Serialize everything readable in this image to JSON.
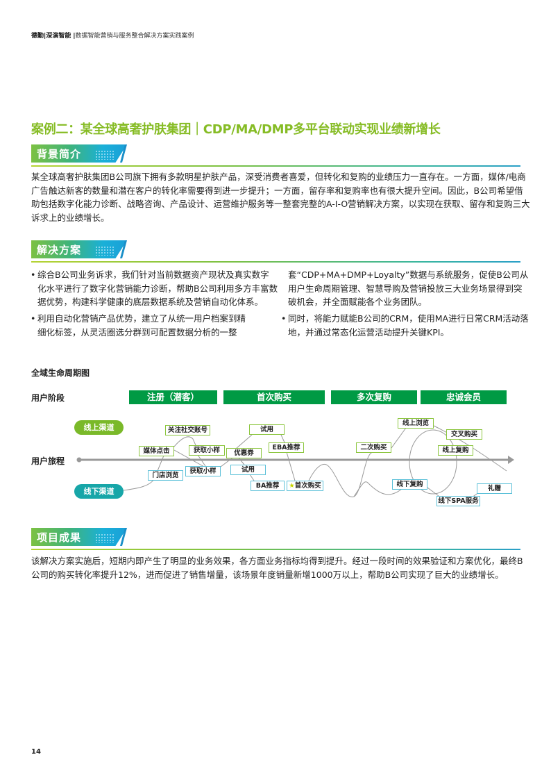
{
  "header": {
    "brand1": "德勤",
    "brand2": "深演智能",
    "subtitle": "数据智能营销与服务整合解决方案实践案例"
  },
  "title": "案例二：某全球高奢护肤集团｜CDP/MA/DMP多平台联动实现业绩新增长",
  "sections": {
    "background": {
      "label": "背景简介",
      "lines": [
        "某全球高奢护肤集团B公司旗下拥有多款明星护肤产品，深受消费者喜爱，但转化和复购的业绩压力一直存在。一方面，媒体/电商",
        "广告触达新客的数量和潜在客户的转化率需要得到进一步提升；一方面，留存率和复购率也有很大提升空间。因此，B公司希望借",
        "助包括数字化能力诊断、战略咨询、产品设计、运营维护服务等一整套完整的A-I-O营销解决方案，以实现在获取、留存和复购三大",
        "诉求上的业绩增长。"
      ]
    },
    "solution": {
      "label": "解决方案",
      "bullets": [
        {
          "lines": [
            "综合B公司业务诉求，我们针对当前数据资产现状及真实数字",
            "化水平进行了数字化营销能力诊断，帮助B公司利用多方丰富数",
            "据优势，构建科学健康的底层数据系统及营销自动化体系。"
          ]
        },
        {
          "lines": [
            "利用自动化营销产品优势，建立了从统一用户档案到精",
            "细化标签，从灵活圈选分群到可配置数据分析的一整"
          ]
        },
        {
          "lines": [
            "套“CDP+MA+DMP+Loyalty”数据与系统服务，促使B公司从",
            "用户生命周期管理、智慧导购及营销投放三大业务场景得到突",
            "破机会，并全面赋能各个业务团队。"
          ]
        },
        {
          "lines": [
            "同时，将能力赋能B公司的CRM，使用MA进行日常CRM活动落",
            "地，并通过常态化运营活动提升关键KPI。"
          ]
        }
      ]
    },
    "results": {
      "label": "项目成果",
      "lines": [
        "该解决方案实施后，短期内即产生了明显的业务效果，各方面业务指标均得到提升。经过一段时间的效果验证和方案优化，最终B",
        "公司的购买转化率提升12%，进而促进了销售增量，该场景年度销量新增1000万以上，帮助B公司实现了巨大的业绩增长。"
      ]
    }
  },
  "diagram": {
    "title": "全域生命周期图",
    "stage_label": "用户阶段",
    "journey_label": "用户旅程",
    "stages": [
      "注册（潜客）",
      "首次购买",
      "多次复购",
      "忠诚会员"
    ],
    "online_channel": "线上渠道",
    "offline_channel": "线下渠道",
    "online_touchpoints": [
      "关注社交账号",
      "媒体点击",
      "获取小样",
      "优惠券",
      "试用",
      "EBA推荐",
      "二次购买",
      "线上浏览",
      "交叉购买",
      "线上复购"
    ],
    "offline_touchpoints": [
      "门店浏览",
      "获取小样",
      "试用",
      "BA推荐",
      "首次购买",
      "线下复购",
      "线下SPA服务",
      "礼赠"
    ],
    "colors": {
      "stage": "#009a44",
      "online": "#7ab929",
      "offline": "#17a6a8",
      "title": "#86bc25"
    }
  },
  "page_number": "14"
}
